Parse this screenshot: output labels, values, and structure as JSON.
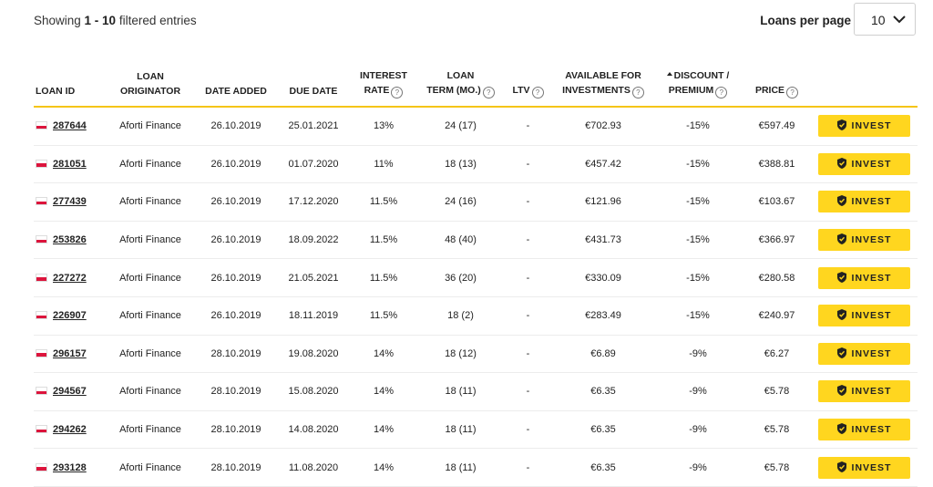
{
  "header": {
    "showing_prefix": "Showing ",
    "showing_range": "1 - 10",
    "showing_suffix": " filtered entries",
    "loans_per_page_label": "Loans per page",
    "loans_per_page_value": "10"
  },
  "columns": {
    "loan_id": "LOAN ID",
    "loan_originator": [
      "LOAN",
      "ORIGINATOR"
    ],
    "date_added": "DATE ADDED",
    "due_date": "DUE DATE",
    "interest_rate": [
      "INTEREST",
      "RATE"
    ],
    "loan_term": [
      "LOAN",
      "TERM (MO.)"
    ],
    "ltv": "LTV",
    "available": [
      "AVAILABLE FOR",
      "INVESTMENTS"
    ],
    "discount": [
      "DISCOUNT /",
      "PREMIUM"
    ],
    "price": "PRICE"
  },
  "invest_label": "INVEST",
  "rows": [
    {
      "loan_id": "287644",
      "originator": "Aforti Finance",
      "date_added": "26.10.2019",
      "due_date": "25.01.2021",
      "interest": "13%",
      "term": "24 (17)",
      "ltv": "-",
      "available": "€702.93",
      "discount": "-15%",
      "price": "€597.49"
    },
    {
      "loan_id": "281051",
      "originator": "Aforti Finance",
      "date_added": "26.10.2019",
      "due_date": "01.07.2020",
      "interest": "11%",
      "term": "18 (13)",
      "ltv": "-",
      "available": "€457.42",
      "discount": "-15%",
      "price": "€388.81"
    },
    {
      "loan_id": "277439",
      "originator": "Aforti Finance",
      "date_added": "26.10.2019",
      "due_date": "17.12.2020",
      "interest": "11.5%",
      "term": "24 (16)",
      "ltv": "-",
      "available": "€121.96",
      "discount": "-15%",
      "price": "€103.67"
    },
    {
      "loan_id": "253826",
      "originator": "Aforti Finance",
      "date_added": "26.10.2019",
      "due_date": "18.09.2022",
      "interest": "11.5%",
      "term": "48 (40)",
      "ltv": "-",
      "available": "€431.73",
      "discount": "-15%",
      "price": "€366.97"
    },
    {
      "loan_id": "227272",
      "originator": "Aforti Finance",
      "date_added": "26.10.2019",
      "due_date": "21.05.2021",
      "interest": "11.5%",
      "term": "36 (20)",
      "ltv": "-",
      "available": "€330.09",
      "discount": "-15%",
      "price": "€280.58"
    },
    {
      "loan_id": "226907",
      "originator": "Aforti Finance",
      "date_added": "26.10.2019",
      "due_date": "18.11.2019",
      "interest": "11.5%",
      "term": "18 (2)",
      "ltv": "-",
      "available": "€283.49",
      "discount": "-15%",
      "price": "€240.97"
    },
    {
      "loan_id": "296157",
      "originator": "Aforti Finance",
      "date_added": "28.10.2019",
      "due_date": "19.08.2020",
      "interest": "14%",
      "term": "18 (12)",
      "ltv": "-",
      "available": "€6.89",
      "discount": "-9%",
      "price": "€6.27"
    },
    {
      "loan_id": "294567",
      "originator": "Aforti Finance",
      "date_added": "28.10.2019",
      "due_date": "15.08.2020",
      "interest": "14%",
      "term": "18 (11)",
      "ltv": "-",
      "available": "€6.35",
      "discount": "-9%",
      "price": "€5.78"
    },
    {
      "loan_id": "294262",
      "originator": "Aforti Finance",
      "date_added": "28.10.2019",
      "due_date": "14.08.2020",
      "interest": "14%",
      "term": "18 (11)",
      "ltv": "-",
      "available": "€6.35",
      "discount": "-9%",
      "price": "€5.78"
    },
    {
      "loan_id": "293128",
      "originator": "Aforti Finance",
      "date_added": "28.10.2019",
      "due_date": "11.08.2020",
      "interest": "14%",
      "term": "18 (11)",
      "ltv": "-",
      "available": "€6.35",
      "discount": "-9%",
      "price": "€5.78"
    }
  ],
  "colors": {
    "accent": "#ffd61f",
    "header_rule": "#f5c518",
    "flag_red": "#dc143c"
  },
  "icons": {
    "flag": "poland-flag-icon",
    "invest": "shield-check-icon",
    "dropdown": "chevron-down-icon",
    "help": "question-circle-icon",
    "sort": "sort-asc-icon"
  }
}
